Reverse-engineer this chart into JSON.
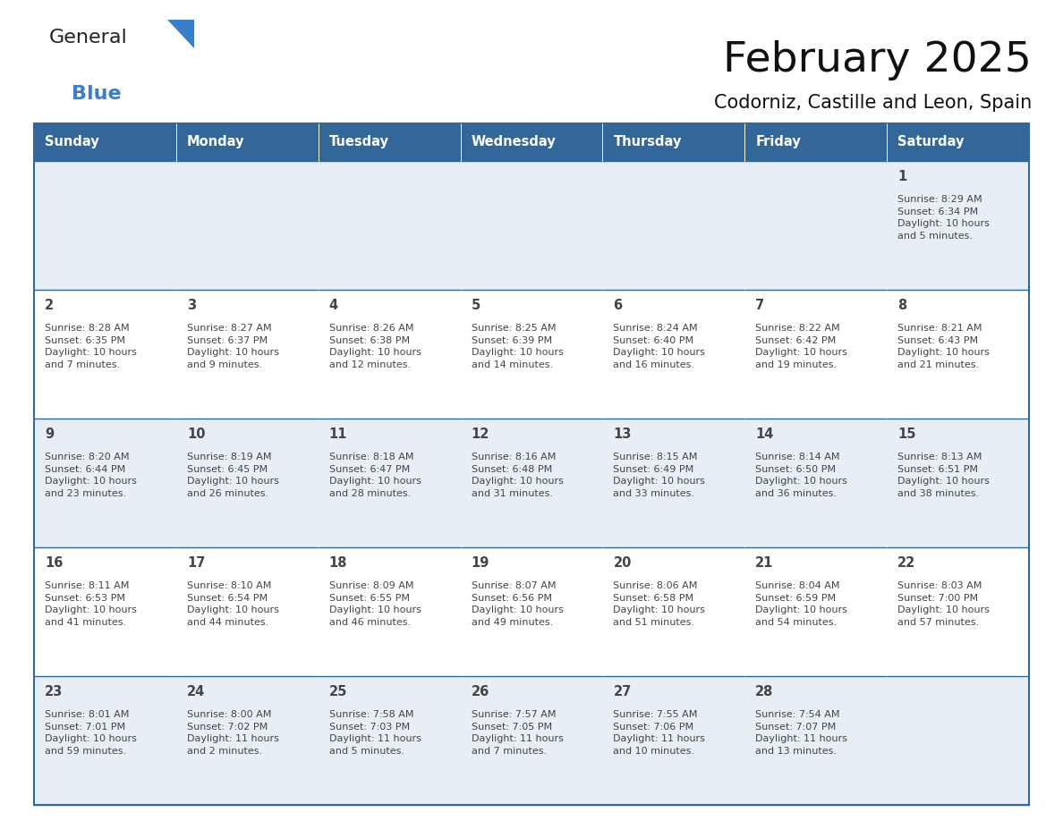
{
  "title": "February 2025",
  "subtitle": "Codorniz, Castille and Leon, Spain",
  "header_bg": "#336699",
  "header_text_color": "#ffffff",
  "day_names": [
    "Sunday",
    "Monday",
    "Tuesday",
    "Wednesday",
    "Thursday",
    "Friday",
    "Saturday"
  ],
  "row_bg": [
    "#e8eef5",
    "#ffffff",
    "#e8eef5",
    "#ffffff",
    "#e8eef5"
  ],
  "border_color": "#336699",
  "text_color": "#444444",
  "logo_general_color": "#222222",
  "logo_blue_color": "#3a7dc9",
  "calendar_data": [
    [
      {
        "day": null,
        "info": null
      },
      {
        "day": null,
        "info": null
      },
      {
        "day": null,
        "info": null
      },
      {
        "day": null,
        "info": null
      },
      {
        "day": null,
        "info": null
      },
      {
        "day": null,
        "info": null
      },
      {
        "day": "1",
        "info": "Sunrise: 8:29 AM\nSunset: 6:34 PM\nDaylight: 10 hours\nand 5 minutes."
      }
    ],
    [
      {
        "day": "2",
        "info": "Sunrise: 8:28 AM\nSunset: 6:35 PM\nDaylight: 10 hours\nand 7 minutes."
      },
      {
        "day": "3",
        "info": "Sunrise: 8:27 AM\nSunset: 6:37 PM\nDaylight: 10 hours\nand 9 minutes."
      },
      {
        "day": "4",
        "info": "Sunrise: 8:26 AM\nSunset: 6:38 PM\nDaylight: 10 hours\nand 12 minutes."
      },
      {
        "day": "5",
        "info": "Sunrise: 8:25 AM\nSunset: 6:39 PM\nDaylight: 10 hours\nand 14 minutes."
      },
      {
        "day": "6",
        "info": "Sunrise: 8:24 AM\nSunset: 6:40 PM\nDaylight: 10 hours\nand 16 minutes."
      },
      {
        "day": "7",
        "info": "Sunrise: 8:22 AM\nSunset: 6:42 PM\nDaylight: 10 hours\nand 19 minutes."
      },
      {
        "day": "8",
        "info": "Sunrise: 8:21 AM\nSunset: 6:43 PM\nDaylight: 10 hours\nand 21 minutes."
      }
    ],
    [
      {
        "day": "9",
        "info": "Sunrise: 8:20 AM\nSunset: 6:44 PM\nDaylight: 10 hours\nand 23 minutes."
      },
      {
        "day": "10",
        "info": "Sunrise: 8:19 AM\nSunset: 6:45 PM\nDaylight: 10 hours\nand 26 minutes."
      },
      {
        "day": "11",
        "info": "Sunrise: 8:18 AM\nSunset: 6:47 PM\nDaylight: 10 hours\nand 28 minutes."
      },
      {
        "day": "12",
        "info": "Sunrise: 8:16 AM\nSunset: 6:48 PM\nDaylight: 10 hours\nand 31 minutes."
      },
      {
        "day": "13",
        "info": "Sunrise: 8:15 AM\nSunset: 6:49 PM\nDaylight: 10 hours\nand 33 minutes."
      },
      {
        "day": "14",
        "info": "Sunrise: 8:14 AM\nSunset: 6:50 PM\nDaylight: 10 hours\nand 36 minutes."
      },
      {
        "day": "15",
        "info": "Sunrise: 8:13 AM\nSunset: 6:51 PM\nDaylight: 10 hours\nand 38 minutes."
      }
    ],
    [
      {
        "day": "16",
        "info": "Sunrise: 8:11 AM\nSunset: 6:53 PM\nDaylight: 10 hours\nand 41 minutes."
      },
      {
        "day": "17",
        "info": "Sunrise: 8:10 AM\nSunset: 6:54 PM\nDaylight: 10 hours\nand 44 minutes."
      },
      {
        "day": "18",
        "info": "Sunrise: 8:09 AM\nSunset: 6:55 PM\nDaylight: 10 hours\nand 46 minutes."
      },
      {
        "day": "19",
        "info": "Sunrise: 8:07 AM\nSunset: 6:56 PM\nDaylight: 10 hours\nand 49 minutes."
      },
      {
        "day": "20",
        "info": "Sunrise: 8:06 AM\nSunset: 6:58 PM\nDaylight: 10 hours\nand 51 minutes."
      },
      {
        "day": "21",
        "info": "Sunrise: 8:04 AM\nSunset: 6:59 PM\nDaylight: 10 hours\nand 54 minutes."
      },
      {
        "day": "22",
        "info": "Sunrise: 8:03 AM\nSunset: 7:00 PM\nDaylight: 10 hours\nand 57 minutes."
      }
    ],
    [
      {
        "day": "23",
        "info": "Sunrise: 8:01 AM\nSunset: 7:01 PM\nDaylight: 10 hours\nand 59 minutes."
      },
      {
        "day": "24",
        "info": "Sunrise: 8:00 AM\nSunset: 7:02 PM\nDaylight: 11 hours\nand 2 minutes."
      },
      {
        "day": "25",
        "info": "Sunrise: 7:58 AM\nSunset: 7:03 PM\nDaylight: 11 hours\nand 5 minutes."
      },
      {
        "day": "26",
        "info": "Sunrise: 7:57 AM\nSunset: 7:05 PM\nDaylight: 11 hours\nand 7 minutes."
      },
      {
        "day": "27",
        "info": "Sunrise: 7:55 AM\nSunset: 7:06 PM\nDaylight: 11 hours\nand 10 minutes."
      },
      {
        "day": "28",
        "info": "Sunrise: 7:54 AM\nSunset: 7:07 PM\nDaylight: 11 hours\nand 13 minutes."
      },
      {
        "day": null,
        "info": null
      }
    ]
  ]
}
